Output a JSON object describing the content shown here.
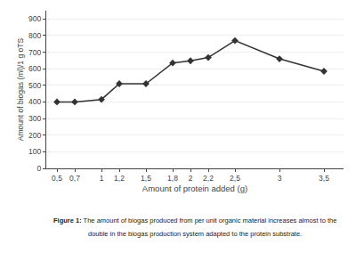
{
  "chart_data": {
    "type": "line",
    "xlabel": "Amount of protein added (g)",
    "ylabel": "Amount of biogas (ml)/1 g oTS",
    "x": [
      0.5,
      0.7,
      1.0,
      1.2,
      1.5,
      1.8,
      2.0,
      2.2,
      2.5,
      3.0,
      3.5
    ],
    "values": [
      400,
      400,
      415,
      510,
      510,
      635,
      648,
      668,
      770,
      660,
      585
    ],
    "color": "#333333",
    "marker": "diamond",
    "line_style": "solid",
    "xlim": [
      0.38,
      3.72
    ],
    "xticks": [
      {
        "value": 0.5,
        "label": "0,5"
      },
      {
        "value": 0.7,
        "label": "0,7"
      },
      1,
      {
        "value": 1.2,
        "label": "1,2"
      },
      {
        "value": 1.5,
        "label": "1,5"
      },
      {
        "value": 1.8,
        "label": "1,8"
      },
      2,
      {
        "value": 2.2,
        "label": "2,2"
      },
      {
        "value": 2.5,
        "label": "2,5"
      },
      3,
      {
        "value": 3.5,
        "label": "3,5"
      }
    ],
    "ylim": [
      0,
      950
    ],
    "yticks": [
      0,
      100,
      200,
      300,
      400,
      500,
      600,
      700,
      800,
      900
    ],
    "grid": "y",
    "annotations": [
      "Figure 1:",
      " The amount of biogas produced from per unit organic material increases almost to the",
      "double in the biogas production system adapted to the protein substrate."
    ]
  }
}
